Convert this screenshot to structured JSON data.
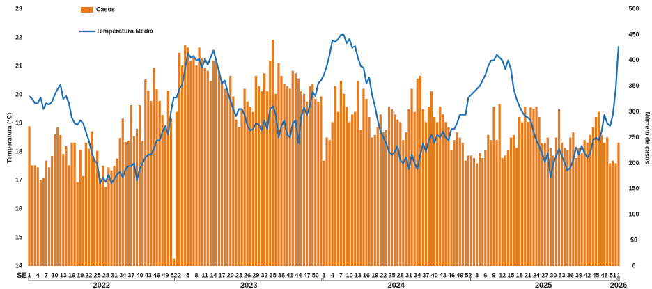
{
  "chart_data": {
    "type": "bar-line",
    "x_label": "SE",
    "y_label": "Temperatura (°C)",
    "y2_label": "Número de casos",
    "ylim": [
      14,
      23
    ],
    "yticks": [
      14,
      15,
      16,
      17,
      18,
      19,
      20,
      21,
      22,
      23
    ],
    "y2lim": [
      0,
      500
    ],
    "y2ticks": [
      0,
      50,
      100,
      150,
      200,
      250,
      300,
      350,
      400,
      450,
      500
    ],
    "groups": [
      {
        "label": "2022",
        "weeks": [
          "1",
          null,
          null,
          "4",
          null,
          null,
          "7",
          null,
          null,
          "10",
          null,
          null,
          "13",
          null,
          null,
          "16",
          null,
          null,
          "19",
          null,
          null,
          "22",
          null,
          null,
          "25",
          null,
          null,
          "28",
          null,
          null,
          "31",
          null,
          null,
          "34",
          null,
          null,
          "37",
          null,
          null,
          "40",
          null,
          null,
          "43",
          null,
          null,
          "46",
          null,
          null,
          "49",
          null,
          null,
          "52"
        ]
      },
      {
        "label": "2023",
        "weeks": [
          null,
          "2",
          null,
          null,
          "5",
          null,
          null,
          "8",
          null,
          null,
          "11",
          null,
          null,
          "14",
          null,
          null,
          "17",
          null,
          null,
          "20",
          null,
          null,
          "23",
          null,
          null,
          "26",
          null,
          null,
          "29",
          null,
          null,
          "32",
          null,
          null,
          "35",
          null,
          null,
          "38",
          null,
          null,
          "41",
          null,
          null,
          "44",
          null,
          null,
          "47",
          null,
          null,
          "50",
          null,
          null
        ]
      },
      {
        "label": "2024",
        "weeks": [
          "1",
          null,
          null,
          "4",
          null,
          null,
          "7",
          null,
          null,
          "10",
          null,
          null,
          "13",
          null,
          null,
          "16",
          null,
          null,
          "19",
          null,
          null,
          "22",
          null,
          null,
          "25",
          null,
          null,
          "28",
          null,
          null,
          "31",
          null,
          null,
          "34",
          null,
          null,
          "37",
          null,
          null,
          "40",
          null,
          null,
          "43",
          null,
          null,
          "46",
          null,
          null,
          "49",
          null,
          null,
          "52"
        ]
      },
      {
        "label": "2025",
        "weeks": [
          null,
          null,
          "3",
          null,
          null,
          "6",
          null,
          null,
          "9",
          null,
          null,
          "12",
          null,
          null,
          "15",
          null,
          null,
          "18",
          null,
          null,
          "21",
          null,
          null,
          "24",
          null,
          null,
          "27",
          null,
          null,
          "30",
          null,
          null,
          "33",
          null,
          null,
          "36",
          null,
          null,
          "39",
          null,
          null,
          "42",
          null,
          null,
          "45",
          null,
          null,
          "48",
          null,
          null,
          "51",
          null
        ]
      },
      {
        "label": "2026",
        "weeks": [
          "1"
        ]
      }
    ],
    "series": [
      {
        "name": "Casos",
        "type": "bar",
        "axis": "y2",
        "color": "#e87a1e",
        "values": [
          272,
          196,
          196,
          192,
          168,
          171,
          205,
          192,
          214,
          256,
          270,
          255,
          218,
          233,
          196,
          240,
          240,
          163,
          226,
          175,
          240,
          228,
          262,
          206,
          224,
          171,
          195,
          154,
          192,
          186,
          195,
          209,
          249,
          287,
          241,
          244,
          313,
          253,
          267,
          313,
          243,
          363,
          341,
          321,
          386,
          344,
          321,
          294,
          267,
          341,
          287,
          14,
          300,
          415,
          390,
          430,
          425,
          400,
          410,
          390,
          425,
          405,
          385,
          380,
          360,
          400,
          400,
          380,
          360,
          345,
          340,
          370,
          330,
          285,
          270,
          305,
          345,
          320,
          310,
          300,
          370,
          350,
          340,
          375,
          340,
          400,
          440,
          335,
          395,
          370,
          355,
          350,
          345,
          380,
          375,
          365,
          340,
          335,
          320,
          350,
          355,
          325,
          320,
          330,
          205,
          250,
          245,
          280,
          350,
          300,
          360,
          335,
          310,
          280,
          295,
          300,
          360,
          265,
          345,
          325,
          290,
          250,
          255,
          270,
          295,
          260,
          265,
          310,
          305,
          295,
          285,
          280,
          245,
          260,
          305,
          345,
          300,
          365,
          370,
          305,
          280,
          310,
          340,
          290,
          280,
          310,
          295,
          280,
          270,
          225,
          245,
          260,
          250,
          240,
          205,
          215,
          215,
          210,
          200,
          220,
          210,
          225,
          255,
          245,
          310,
          245,
          315,
          210,
          215,
          225,
          250,
          255,
          230,
          290,
          280,
          310,
          280,
          310,
          305,
          310,
          290,
          240,
          240,
          250,
          230,
          215,
          250,
          305,
          240,
          230,
          225,
          250,
          260,
          210,
          230,
          220,
          245,
          240,
          255,
          270,
          290,
          300,
          255,
          240,
          250,
          200,
          205,
          200,
          240
        ]
      },
      {
        "name": "Temperatura Media",
        "type": "line",
        "axis": "y",
        "color": "#1f6fb5",
        "values": [
          19.95,
          19.85,
          19.7,
          19.7,
          19.9,
          19.5,
          19.7,
          19.65,
          19.75,
          20.0,
          20.2,
          20.35,
          19.85,
          19.95,
          19.7,
          19.2,
          19.0,
          18.95,
          19.1,
          19.0,
          18.7,
          18.4,
          18.0,
          17.7,
          17.6,
          16.9,
          17.1,
          16.95,
          17.2,
          16.9,
          17.05,
          17.2,
          17.3,
          17.1,
          17.4,
          17.5,
          17.5,
          17.6,
          17.0,
          17.4,
          17.6,
          17.8,
          17.9,
          17.9,
          18.1,
          18.4,
          18.4,
          18.7,
          18.9,
          18.6,
          19.4,
          19.9,
          19.9,
          20.2,
          20.35,
          20.9,
          21.45,
          21.3,
          21.35,
          21.2,
          21.25,
          20.95,
          21.25,
          21.05,
          21.3,
          21.55,
          21.2,
          20.8,
          20.4,
          20.5,
          20.1,
          19.8,
          19.5,
          19.25,
          19.5,
          19.5,
          19.3,
          18.9,
          18.75,
          18.8,
          19.0,
          18.95,
          18.75,
          19.1,
          18.8,
          19.5,
          19.6,
          19.3,
          18.5,
          18.9,
          19.1,
          18.6,
          18.5,
          19.0,
          19.1,
          18.3,
          19.25,
          19.55,
          19.3,
          19.6,
          20.1,
          19.95,
          20.4,
          20.5,
          20.7,
          21.0,
          21.4,
          21.9,
          21.85,
          21.95,
          22.1,
          22.1,
          21.8,
          21.95,
          21.65,
          21.7,
          21.3,
          21.0,
          20.95,
          20.4,
          20.6,
          20.0,
          19.6,
          19.1,
          18.7,
          18.5,
          18.3,
          18.0,
          17.9,
          18.0,
          18.2,
          17.7,
          17.6,
          17.8,
          17.4,
          17.9,
          17.6,
          17.4,
          17.9,
          18.3,
          18.0,
          18.4,
          18.6,
          18.3,
          18.6,
          18.5,
          18.7,
          18.5,
          18.4,
          18.8,
          18.8,
          19.0,
          19.3,
          19.3,
          19.3,
          19.9,
          20.0,
          20.1,
          20.2,
          20.3,
          20.5,
          20.7,
          21.0,
          21.2,
          21.2,
          21.4,
          21.3,
          21.2,
          20.9,
          21.2,
          20.9,
          20.2,
          19.85,
          19.6,
          19.4,
          19.25,
          19.2,
          19.1,
          18.7,
          18.4,
          18.2,
          17.95,
          17.65,
          17.95,
          17.1,
          17.6,
          17.85,
          18.1,
          17.85,
          17.6,
          17.35,
          17.45,
          17.7,
          18.15,
          17.9,
          18.2,
          17.95,
          17.8,
          17.95,
          18.4,
          18.5,
          18.4,
          18.7,
          19.3,
          19.0,
          18.9,
          19.3,
          20.2,
          21.7
        ]
      }
    ]
  }
}
